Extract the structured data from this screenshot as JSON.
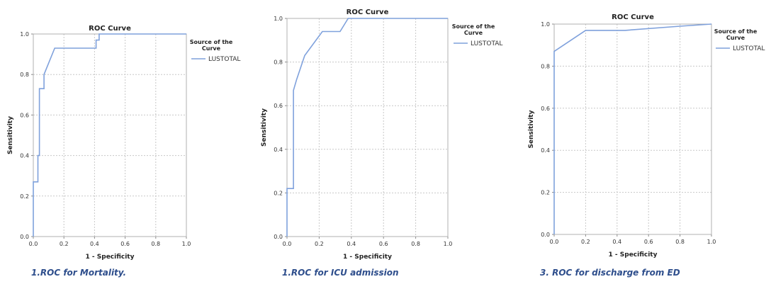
{
  "figure": {
    "curve_color": "#7fa1dc",
    "caption_color": "#2e4e8c",
    "grid": true
  },
  "chart_data": [
    {
      "type": "line",
      "title": "ROC Curve",
      "xlabel": "1 - Specificity",
      "ylabel": "Sensitivity",
      "xlim": [
        0,
        1
      ],
      "ylim": [
        0,
        1
      ],
      "xticks": [
        "0.0",
        "0.2",
        "0.4",
        "0.6",
        "0.8",
        "1.0"
      ],
      "yticks": [
        "0.0",
        "0.2",
        "0.4",
        "0.6",
        "0.8",
        "1.0"
      ],
      "legend_title": "Source of the Curve",
      "legend_placement": "right",
      "series": [
        {
          "name": "LUSTOTAL",
          "x": [
            0,
            0,
            0.03,
            0.03,
            0.04,
            0.04,
            0.07,
            0.07,
            0.14,
            0.14,
            0.41,
            0.41,
            0.43,
            0.43,
            1.0
          ],
          "y": [
            0,
            0.27,
            0.27,
            0.4,
            0.4,
            0.73,
            0.73,
            0.8,
            0.93,
            0.93,
            0.93,
            0.97,
            0.97,
            1.0,
            1.0
          ]
        }
      ],
      "caption": "1.ROC for Mortality."
    },
    {
      "type": "line",
      "title": "ROC Curve",
      "xlabel": "1 - Specificity",
      "ylabel": "Sensitivity",
      "xlim": [
        0,
        1
      ],
      "ylim": [
        0,
        1
      ],
      "xticks": [
        "0.0",
        "0.2",
        "0.4",
        "0.6",
        "0.8",
        "1.0"
      ],
      "yticks": [
        "0.0",
        "0.2",
        "0.4",
        "0.6",
        "0.8",
        "1.0"
      ],
      "legend_title": "Source of the Curve",
      "legend_placement": "right",
      "series": [
        {
          "name": "LUSTOTAL",
          "x": [
            0,
            0,
            0.04,
            0.04,
            0.06,
            0.11,
            0.22,
            0.22,
            0.33,
            0.33,
            0.38,
            1.0
          ],
          "y": [
            0,
            0.22,
            0.22,
            0.67,
            0.72,
            0.83,
            0.94,
            0.94,
            0.94,
            0.94,
            1.0,
            1.0
          ]
        }
      ],
      "caption": "1.ROC for ICU admission"
    },
    {
      "type": "line",
      "title": "ROC Curve",
      "xlabel": "1 - Specificity",
      "ylabel": "Sensitivity",
      "xlim": [
        0,
        1
      ],
      "ylim": [
        0,
        1
      ],
      "xticks": [
        "0.0",
        "0.2",
        "0.4",
        "0.6",
        "0.8",
        "1.0"
      ],
      "yticks": [
        "0.0",
        "0.2",
        "0.4",
        "0.6",
        "0.8",
        "1.0"
      ],
      "legend_title": "Source of the Curve",
      "legend_placement": "right",
      "series": [
        {
          "name": "LUSTOTAL",
          "x": [
            0,
            0,
            0.2,
            0.45,
            0.8,
            1.0
          ],
          "y": [
            0,
            0.87,
            0.97,
            0.97,
            0.99,
            1.0
          ]
        }
      ],
      "caption": "3. ROC for discharge from ED"
    }
  ]
}
